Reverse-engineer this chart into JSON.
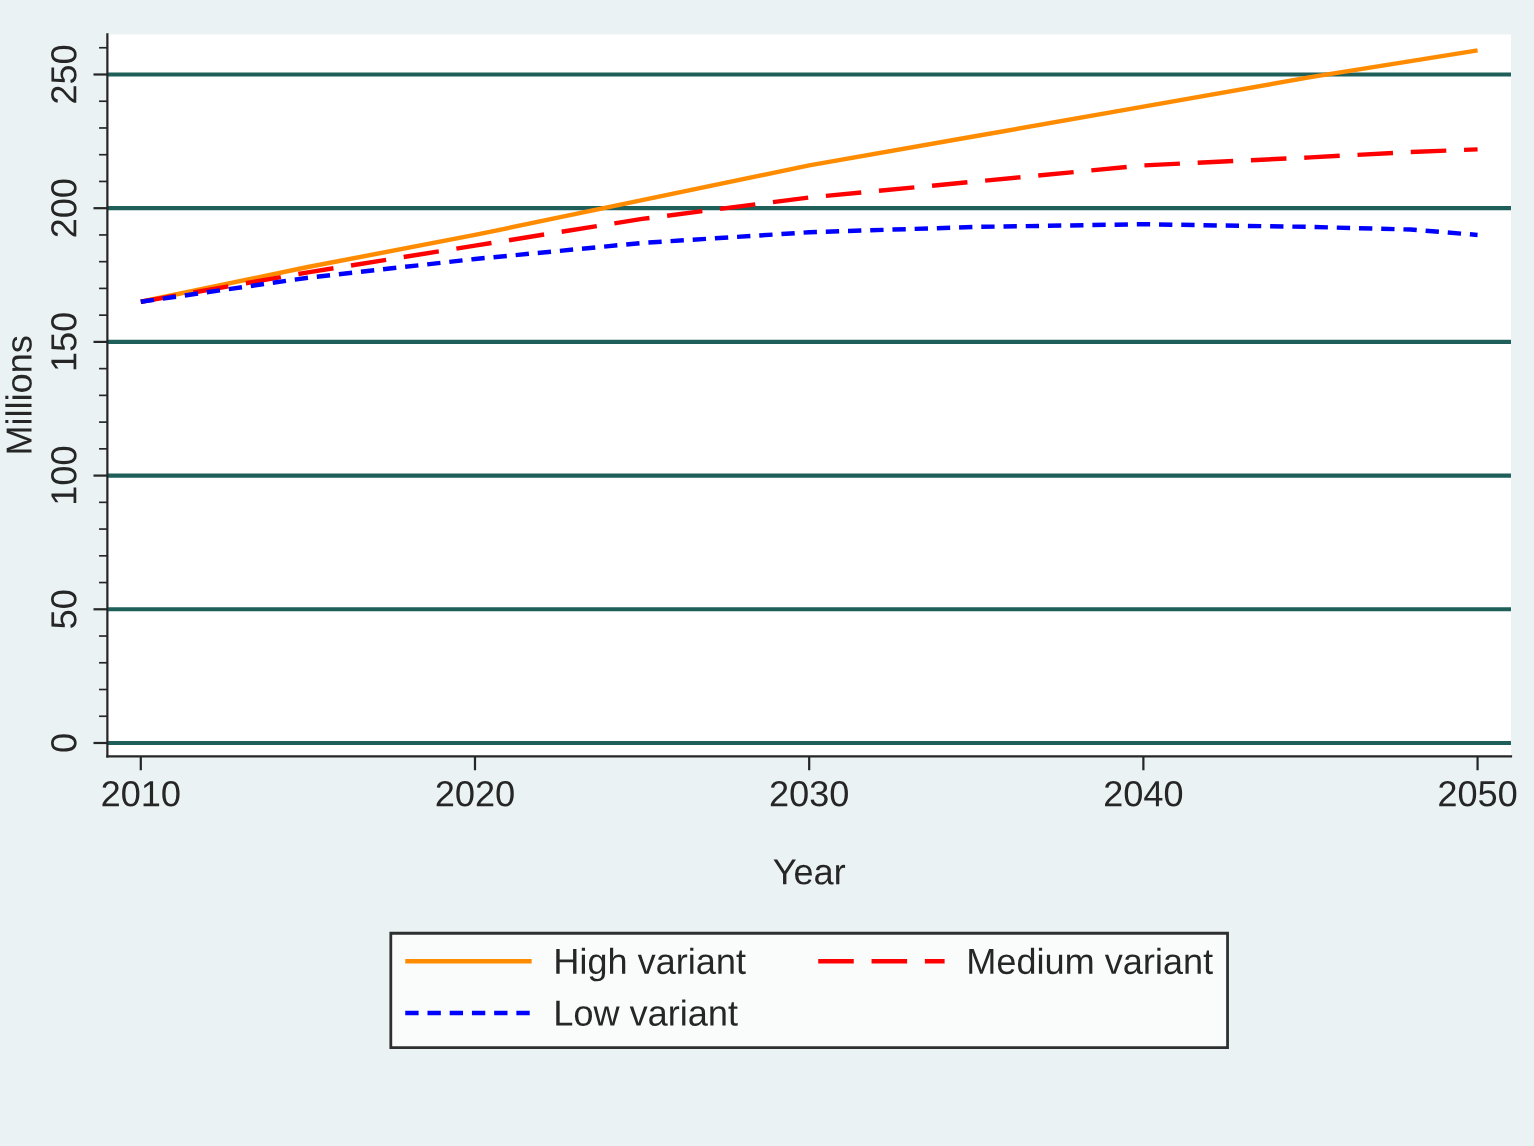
{
  "chart_data": {
    "type": "line",
    "xlabel": "Year",
    "ylabel": "Millions",
    "x": [
      2010,
      2015,
      2020,
      2025,
      2030,
      2035,
      2040,
      2045,
      2048,
      2050
    ],
    "series": [
      {
        "name": "High variant",
        "color": "#ff8c00",
        "line_style": "solid",
        "values": [
          165,
          178,
          190,
          203,
          216,
          227,
          238,
          249,
          255,
          259
        ]
      },
      {
        "name": "Medium variant",
        "color": "#ff0000",
        "line_style": "dashed",
        "values": [
          165,
          176,
          186,
          196,
          204,
          210,
          216,
          219,
          221,
          222
        ]
      },
      {
        "name": "Low variant",
        "color": "#0000ff",
        "line_style": "dotted",
        "values": [
          165,
          174,
          181,
          187,
          191,
          193,
          194,
          193,
          192,
          190
        ]
      }
    ],
    "xlim": [
      2009,
      2051
    ],
    "xticks": [
      2010,
      2020,
      2030,
      2040,
      2050
    ],
    "ylim": [
      -5,
      265
    ],
    "yticks": [
      0,
      50,
      100,
      150,
      200,
      250
    ],
    "grid": "y",
    "legend": "bottom"
  }
}
